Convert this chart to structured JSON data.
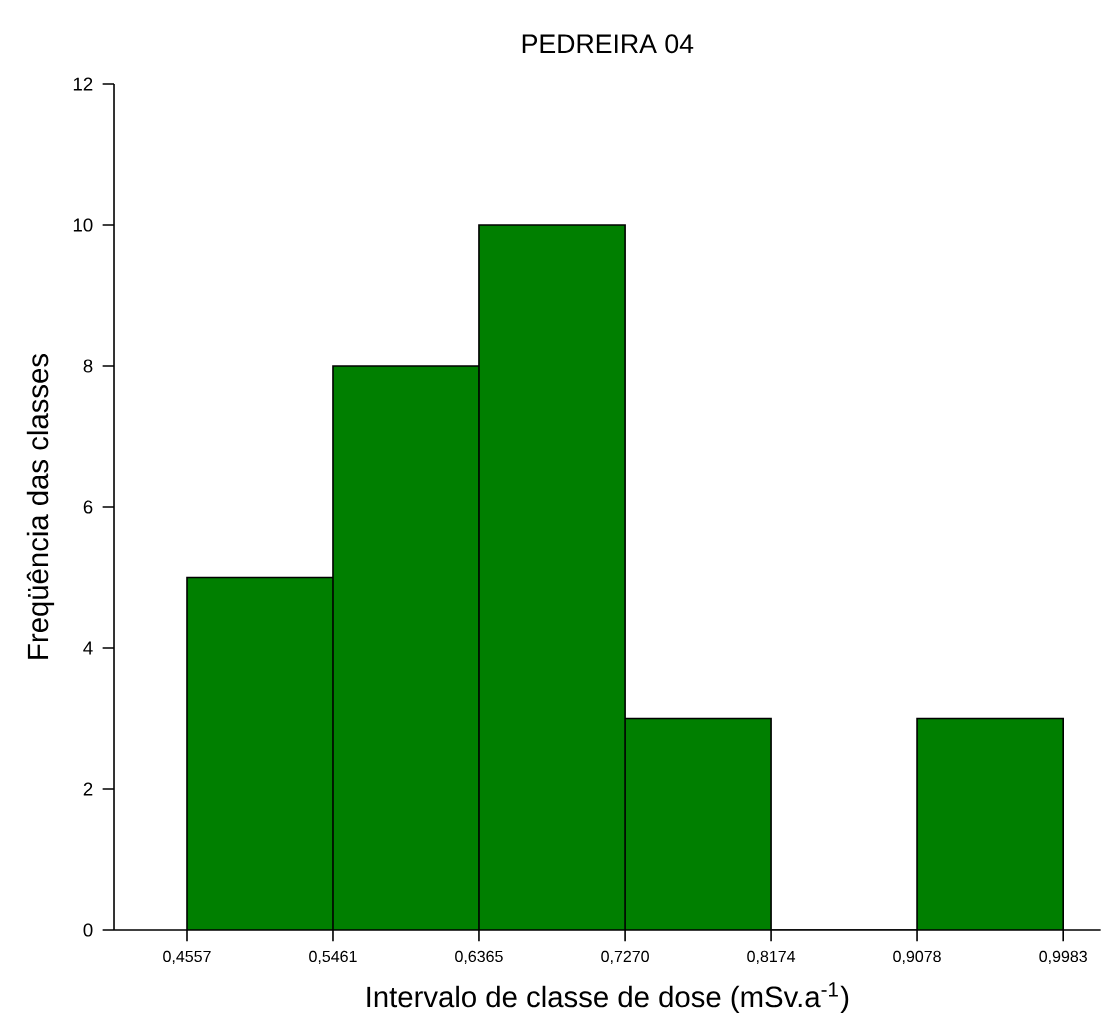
{
  "chart_data": {
    "type": "histogram",
    "title": "PEDREIRA  04",
    "xlabel": "Intervalo de classe de dose (mSv.a$^{-1}$)",
    "ylabel": "Freqüência das classes",
    "bins": [
      0.4557,
      0.5461,
      0.6365,
      0.727,
      0.8174,
      0.9078,
      0.9983
    ],
    "values": [
      5,
      8,
      10,
      3,
      0,
      3
    ],
    "color": "#007f00",
    "xlim": [
      0.4105,
      1.0215
    ],
    "ylim": [
      0,
      12
    ],
    "xticks": [
      {
        "value": 0.4557,
        "label": "0,4557"
      },
      {
        "value": 0.5461,
        "label": "0,5461"
      },
      {
        "value": 0.6365,
        "label": "0,6365"
      },
      {
        "value": 0.727,
        "label": "0,7270"
      },
      {
        "value": 0.8174,
        "label": "0,8174"
      },
      {
        "value": 0.9078,
        "label": "0,9078"
      },
      {
        "value": 0.9983,
        "label": "0,9983"
      }
    ],
    "yticks": [
      0,
      2,
      4,
      6,
      8,
      10,
      12
    ],
    "grid": false
  }
}
